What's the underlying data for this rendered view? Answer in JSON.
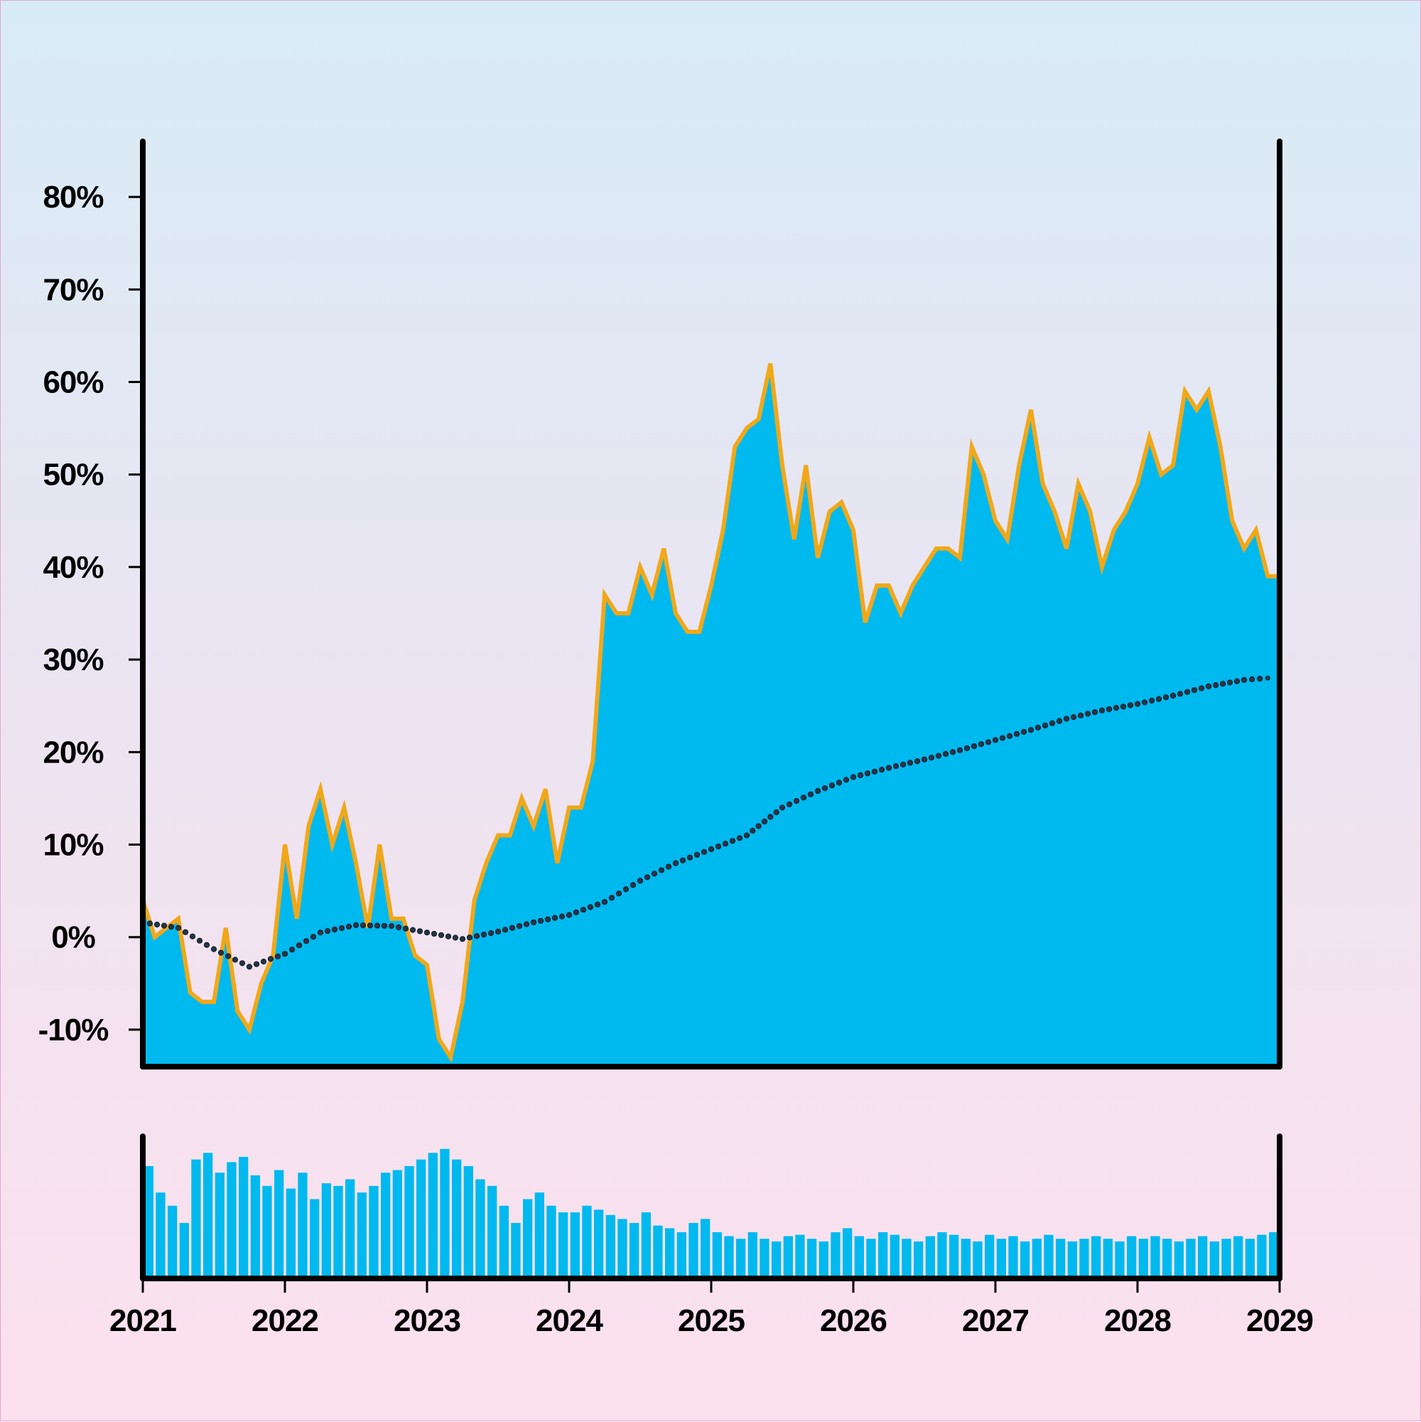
{
  "chart_data": {
    "type": "area",
    "x_start": "2021-01-01",
    "x_end": "2029-01-01",
    "x_ticks": [
      "2021",
      "2022",
      "2023",
      "2024",
      "2025",
      "2026",
      "2027",
      "2028",
      "2029"
    ],
    "y_ticks": [
      "-10%",
      "0%",
      "10%",
      "20%",
      "30%",
      "40%",
      "50%",
      "60%",
      "70%",
      "80%"
    ],
    "ylim": [
      -14,
      86
    ],
    "grid": false,
    "series": [
      {
        "kind": "area",
        "color": "#00b9ee",
        "edge_color": "#f0a81a",
        "x": [
          "2021-01",
          "2021-02",
          "2021-03",
          "2021-04",
          "2021-05",
          "2021-06",
          "2021-07",
          "2021-08",
          "2021-09",
          "2021-10",
          "2021-11",
          "2021-12",
          "2022-01",
          "2022-02",
          "2022-03",
          "2022-04",
          "2022-05",
          "2022-06",
          "2022-07",
          "2022-08",
          "2022-09",
          "2022-10",
          "2022-11",
          "2022-12",
          "2023-01",
          "2023-02",
          "2023-03",
          "2023-04",
          "2023-05",
          "2023-06",
          "2023-07",
          "2023-08",
          "2023-09",
          "2023-10",
          "2023-11",
          "2023-12",
          "2024-01",
          "2024-02",
          "2024-03",
          "2024-04",
          "2024-05",
          "2024-06",
          "2024-07",
          "2024-08",
          "2024-09",
          "2024-10",
          "2024-11",
          "2024-12",
          "2025-01",
          "2025-02",
          "2025-03",
          "2025-04",
          "2025-05",
          "2025-06",
          "2025-07",
          "2025-08",
          "2025-09",
          "2025-10",
          "2025-11",
          "2025-12",
          "2026-01",
          "2026-02",
          "2026-03",
          "2026-04",
          "2026-05",
          "2026-06",
          "2026-07",
          "2026-08",
          "2026-09",
          "2026-10",
          "2026-11",
          "2026-12",
          "2027-01",
          "2027-02",
          "2027-03",
          "2027-04",
          "2027-05",
          "2027-06",
          "2027-07",
          "2027-08",
          "2027-09",
          "2027-10",
          "2027-11",
          "2027-12",
          "2028-01",
          "2028-02",
          "2028-03",
          "2028-04",
          "2028-05",
          "2028-06",
          "2028-07",
          "2028-08",
          "2028-09",
          "2028-10",
          "2028-11",
          "2028-12"
        ],
        "values": [
          4,
          0,
          1,
          2,
          -6,
          -7,
          -7,
          1,
          -8,
          -10,
          -5,
          -2,
          10,
          2,
          12,
          16,
          10,
          14,
          8,
          1,
          10,
          2,
          2,
          -2,
          -3,
          -11,
          -13,
          -7,
          4,
          8,
          11,
          11,
          15,
          12,
          16,
          8,
          14,
          14,
          19,
          37,
          35,
          35,
          40,
          37,
          42,
          35,
          33,
          33,
          38,
          44,
          53,
          55,
          56,
          62,
          51,
          43,
          51,
          41,
          46,
          47,
          44,
          34,
          38,
          38,
          35,
          38,
          40,
          42,
          42,
          41,
          53,
          50,
          45,
          43,
          51,
          57,
          49,
          46,
          42,
          49,
          46,
          40,
          44,
          46,
          49,
          54,
          50,
          51,
          59,
          57,
          59,
          53,
          45,
          42,
          44,
          39
        ]
      },
      {
        "kind": "dotted-line",
        "color": "#243447",
        "x": [
          "2021-01",
          "2021-04",
          "2021-07",
          "2021-10",
          "2022-01",
          "2022-04",
          "2022-07",
          "2022-10",
          "2023-01",
          "2023-04",
          "2023-07",
          "2023-10",
          "2024-01",
          "2024-04",
          "2024-07",
          "2024-10",
          "2025-01",
          "2025-04",
          "2025-07",
          "2025-10",
          "2026-01",
          "2026-04",
          "2026-07",
          "2026-10",
          "2027-01",
          "2027-04",
          "2027-07",
          "2027-10",
          "2028-01",
          "2028-04",
          "2028-07",
          "2028-10",
          "2028-12"
        ],
        "values": [
          1.6,
          1.0,
          -1.3,
          -3.2,
          -1.8,
          0.5,
          1.3,
          1.2,
          0.5,
          -0.2,
          0.6,
          1.6,
          2.4,
          3.8,
          6.1,
          8.0,
          9.5,
          11.0,
          14.0,
          15.8,
          17.3,
          18.3,
          19.2,
          20.2,
          21.3,
          22.4,
          23.6,
          24.5,
          25.2,
          26.1,
          27.1,
          27.8,
          28.0
        ]
      }
    ],
    "volume": {
      "color": "#00b9ee",
      "x": [
        "2021-01",
        "2021-02",
        "2021-03",
        "2021-04",
        "2021-05",
        "2021-06",
        "2021-07",
        "2021-08",
        "2021-09",
        "2021-10",
        "2021-11",
        "2021-12",
        "2022-01",
        "2022-02",
        "2022-03",
        "2022-04",
        "2022-05",
        "2022-06",
        "2022-07",
        "2022-08",
        "2022-09",
        "2022-10",
        "2022-11",
        "2022-12",
        "2023-01",
        "2023-02",
        "2023-03",
        "2023-04",
        "2023-05",
        "2023-06",
        "2023-07",
        "2023-08",
        "2023-09",
        "2023-10",
        "2023-11",
        "2023-12",
        "2024-01",
        "2024-02",
        "2024-03",
        "2024-04",
        "2024-05",
        "2024-06",
        "2024-07",
        "2024-08",
        "2024-09",
        "2024-10",
        "2024-11",
        "2024-12",
        "2025-01",
        "2025-02",
        "2025-03",
        "2025-04",
        "2025-05",
        "2025-06",
        "2025-07",
        "2025-08",
        "2025-09",
        "2025-10",
        "2025-11",
        "2025-12",
        "2026-01",
        "2026-02",
        "2026-03",
        "2026-04",
        "2026-05",
        "2026-06",
        "2026-07",
        "2026-08",
        "2026-09",
        "2026-10",
        "2026-11",
        "2026-12",
        "2027-01",
        "2027-02",
        "2027-03",
        "2027-04",
        "2027-05",
        "2027-06",
        "2027-07",
        "2027-08",
        "2027-09",
        "2027-10",
        "2027-11",
        "2027-12",
        "2028-01",
        "2028-02",
        "2028-03",
        "2028-04",
        "2028-05",
        "2028-06",
        "2028-07",
        "2028-08",
        "2028-09",
        "2028-10",
        "2028-11",
        "2028-12"
      ],
      "values": [
        0.85,
        0.65,
        0.55,
        0.42,
        0.9,
        0.95,
        0.8,
        0.88,
        0.92,
        0.78,
        0.7,
        0.82,
        0.68,
        0.8,
        0.6,
        0.72,
        0.7,
        0.75,
        0.65,
        0.7,
        0.8,
        0.82,
        0.85,
        0.9,
        0.95,
        0.98,
        0.9,
        0.85,
        0.75,
        0.7,
        0.55,
        0.42,
        0.6,
        0.65,
        0.55,
        0.5,
        0.5,
        0.55,
        0.52,
        0.48,
        0.45,
        0.42,
        0.5,
        0.4,
        0.38,
        0.35,
        0.42,
        0.45,
        0.35,
        0.32,
        0.3,
        0.35,
        0.3,
        0.28,
        0.32,
        0.33,
        0.3,
        0.28,
        0.35,
        0.38,
        0.32,
        0.3,
        0.35,
        0.33,
        0.3,
        0.28,
        0.32,
        0.35,
        0.33,
        0.3,
        0.28,
        0.33,
        0.3,
        0.32,
        0.28,
        0.3,
        0.33,
        0.3,
        0.28,
        0.3,
        0.32,
        0.3,
        0.28,
        0.32,
        0.3,
        0.32,
        0.3,
        0.28,
        0.3,
        0.32,
        0.28,
        0.3,
        0.32,
        0.3,
        0.33,
        0.35
      ]
    }
  }
}
